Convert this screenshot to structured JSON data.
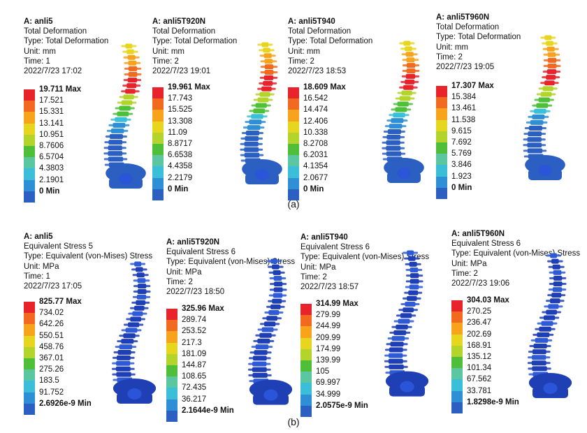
{
  "deformation_palette": [
    "#e8232b",
    "#f26a1f",
    "#f7a31c",
    "#e7d61e",
    "#b3d42a",
    "#4fbf3a",
    "#5bc7a0",
    "#3bbfd8",
    "#2f8fd6",
    "#2b5fc2"
  ],
  "stress_palette": [
    "#e8232b",
    "#f26a1f",
    "#f7a31c",
    "#e7d61e",
    "#b3d42a",
    "#4fbf3a",
    "#5bc7a0",
    "#3bbfd8",
    "#2f8fd6",
    "#2b5fc2"
  ],
  "figure_a": {
    "caption": "(a)",
    "panels": [
      {
        "title": "A: anli5",
        "subtitle": "Total Deformation",
        "type_line": "Type: Total Deformation",
        "unit_line": "Unit: mm",
        "time_line": "Time: 1",
        "date_line": "2022/7/23 17:02",
        "legend": [
          "19.711 Max",
          "17.521",
          "15.331",
          "13.141",
          "10.951",
          "8.7606",
          "6.5704",
          "4.3803",
          "2.1901",
          "0 Min"
        ]
      },
      {
        "title": "A: anli5T920N",
        "subtitle": "Total Deformation",
        "type_line": "Type: Total Deformation",
        "unit_line": "Unit: mm",
        "time_line": "Time: 2",
        "date_line": "2022/7/23 19:01",
        "legend": [
          "19.961 Max",
          "17.743",
          "15.525",
          "13.308",
          "11.09",
          "8.8717",
          "6.6538",
          "4.4358",
          "2.2179",
          "0 Min"
        ]
      },
      {
        "title": "A: anli5T940",
        "subtitle": "Total Deformation",
        "type_line": "Type: Total Deformation",
        "unit_line": "Unit: mm",
        "time_line": "Time: 2",
        "date_line": "2022/7/23 18:53",
        "legend": [
          "18.609 Max",
          "16.542",
          "14.474",
          "12.406",
          "10.338",
          "8.2708",
          "6.2031",
          "4.1354",
          "2.0677",
          "0 Min"
        ]
      },
      {
        "title": "A: anli5T960N",
        "subtitle": "Total Deformation",
        "type_line": "Type: Total Deformation",
        "unit_line": "Unit: mm",
        "time_line": "Time: 2",
        "date_line": "2022/7/23 19:05",
        "legend": [
          "17.307 Max",
          "15.384",
          "13.461",
          "11.538",
          "9.615",
          "7.692",
          "5.769",
          "3.846",
          "1.923",
          "0 Min"
        ]
      }
    ]
  },
  "figure_b": {
    "caption": "(b)",
    "panels": [
      {
        "title": "A: anli5",
        "subtitle": "Equivalent Stress 5",
        "type_line": "Type: Equivalent (von-Mises) Stress",
        "unit_line": "Unit: MPa",
        "time_line": "Time: 1",
        "date_line": "2022/7/23 17:05",
        "legend": [
          "825.77 Max",
          "734.02",
          "642.26",
          "550.51",
          "458.76",
          "367.01",
          "275.26",
          "183.5",
          "91.752",
          "2.6926e-9 Min"
        ]
      },
      {
        "title": "A: anli5T920N",
        "subtitle": "Equivalent Stress 6",
        "type_line": "Type: Equivalent (von-Mises) Stress",
        "unit_line": "Unit: MPa",
        "time_line": "Time: 2",
        "date_line": "2022/7/23 18:50",
        "legend": [
          "325.96 Max",
          "289.74",
          "253.52",
          "217.3",
          "181.09",
          "144.87",
          "108.65",
          "72.435",
          "36.217",
          "2.1644e-9 Min"
        ]
      },
      {
        "title": "A: anli5T940",
        "subtitle": "Equivalent Stress 6",
        "type_line": "Type: Equivalent (von-Mises) Stress",
        "unit_line": "Unit: MPa",
        "time_line": "Time: 2",
        "date_line": "2022/7/23 18:57",
        "legend": [
          "314.99 Max",
          "279.99",
          "244.99",
          "209.99",
          "174.99",
          "139.99",
          "105",
          "69.997",
          "34.999",
          "2.0575e-9 Min"
        ]
      },
      {
        "title": "A: anli5T960N",
        "subtitle": "Equivalent Stress 6",
        "type_line": "Type: Equivalent (von-Mises) Stress",
        "unit_line": "Unit: MPa",
        "time_line": "Time: 2",
        "date_line": "2022/7/23 19:06",
        "legend": [
          "304.03 Max",
          "270.25",
          "236.47",
          "202.69",
          "168.91",
          "135.12",
          "101.34",
          "67.562",
          "33.781",
          "1.8298e-9 Min"
        ]
      }
    ]
  }
}
